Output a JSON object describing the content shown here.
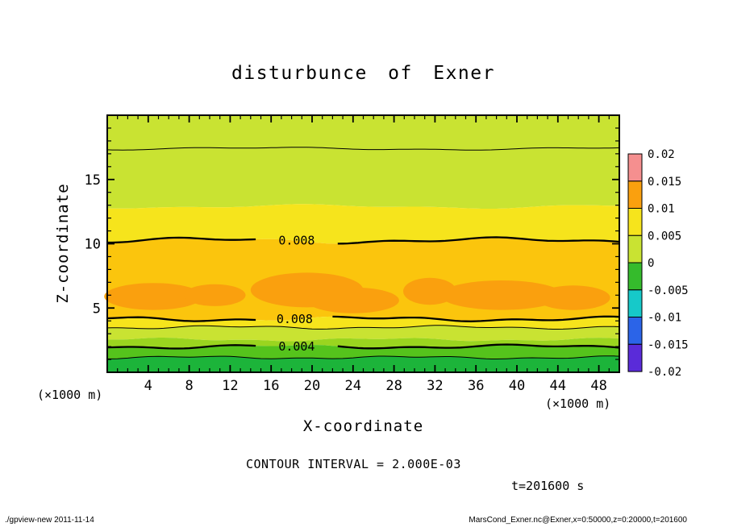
{
  "header": {
    "title": "disturbunce of Exner"
  },
  "chart_data": {
    "type": "contour",
    "title": "disturbunce of Exner",
    "xlabel": "X-coordinate",
    "ylabel": "Z-coordinate",
    "x_unit_label": "(×1000 m)",
    "y_unit_label": "(×1000 m)",
    "xlim": [
      0,
      50
    ],
    "ylim": [
      0,
      20
    ],
    "x_major_ticks": [
      4,
      8,
      12,
      16,
      20,
      24,
      28,
      32,
      36,
      40,
      44,
      48
    ],
    "y_major_ticks": [
      5,
      10,
      15
    ],
    "x_minor_step": 1,
    "y_minor_step": 1,
    "contour_interval_text": "CONTOUR INTERVAL = 2.000E-03",
    "time_label": "t=201600 s",
    "band_colors": [
      "#c9e332",
      "#c9e332",
      "#f6e41c",
      "#fbc50d",
      "#f6e41c",
      "#c9e332",
      "#9ad51f",
      "#55c31c",
      "#1cb43a"
    ],
    "boundaries": [
      {
        "z": 20,
        "line": "none"
      },
      {
        "z": 17.4,
        "line": "thin",
        "a1": 1.4,
        "f1": 0.18,
        "p1": 2.0,
        "a2": 0.7,
        "f2": 0.55,
        "p2": 0.3
      },
      {
        "z": 12.9,
        "line": "none",
        "a1": 2.0,
        "f1": 0.2,
        "p1": 0.8,
        "a2": 1.0,
        "f2": 0.5,
        "p2": 1.5
      },
      {
        "z": 10.25,
        "line": "thick",
        "label": "0.008",
        "label_x": 18.5,
        "a1": 2.6,
        "f1": 0.22,
        "p1": 2.6,
        "a2": 1.5,
        "f2": 0.6,
        "p2": 0.9
      },
      {
        "z": 4.15,
        "line": "thick",
        "label": "0.008",
        "label_x": 18.3,
        "a1": 2.0,
        "f1": 0.24,
        "p1": 5.1,
        "a2": 1.3,
        "f2": 0.7,
        "p2": 2.2
      },
      {
        "z": 3.5,
        "line": "thin",
        "a1": 1.5,
        "f1": 0.3,
        "p1": 1.2,
        "a2": 0.9,
        "f2": 0.8,
        "p2": 4.0
      },
      {
        "z": 2.55,
        "line": "none",
        "a1": 1.5,
        "f1": 0.28,
        "p1": 3.4,
        "a2": 0.9,
        "f2": 0.75,
        "p2": 0.5
      },
      {
        "z": 2.0,
        "line": "thick",
        "label": "0.004",
        "label_x": 18.5,
        "a1": 1.7,
        "f1": 0.26,
        "p1": 0.4,
        "a2": 1.1,
        "f2": 0.7,
        "p2": 2.8
      },
      {
        "z": 1.15,
        "line": "thin",
        "a1": 1.3,
        "f1": 0.3,
        "p1": 2.2,
        "a2": 0.8,
        "f2": 0.85,
        "p2": 1.1
      },
      {
        "z": 0,
        "line": "none"
      }
    ],
    "blob_color": "#faa00e",
    "blobs": [
      {
        "cx": 4.5,
        "cz": 5.9,
        "rx": 4.8,
        "rz": 1.05
      },
      {
        "cx": 10.5,
        "cz": 6.0,
        "rx": 3.0,
        "rz": 0.85
      },
      {
        "cx": 19.5,
        "cz": 6.4,
        "rx": 5.5,
        "rz": 1.35
      },
      {
        "cx": 24.0,
        "cz": 5.6,
        "rx": 4.5,
        "rz": 1.0
      },
      {
        "cx": 31.5,
        "cz": 6.3,
        "rx": 2.6,
        "rz": 1.05
      },
      {
        "cx": 38.5,
        "cz": 6.0,
        "rx": 6.0,
        "rz": 1.15
      },
      {
        "cx": 45.5,
        "cz": 5.8,
        "rx": 3.6,
        "rz": 0.95
      }
    ],
    "colorbar": {
      "labels": [
        "0.02",
        "0.015",
        "0.01",
        "0.005",
        "0",
        "-0.005",
        "-0.01",
        "-0.015",
        "-0.02"
      ],
      "colors": [
        "#f58f8f",
        "#faa00e",
        "#f6e41c",
        "#c9e332",
        "#35bb2c",
        "#16c9c9",
        "#2b64e8",
        "#5a2bd9"
      ]
    }
  },
  "footer": {
    "left": "./gpview-new  2011-11-14",
    "right": "MarsCond_Exner.nc@Exner,x=0:50000,z=0:20000,t=201600"
  }
}
